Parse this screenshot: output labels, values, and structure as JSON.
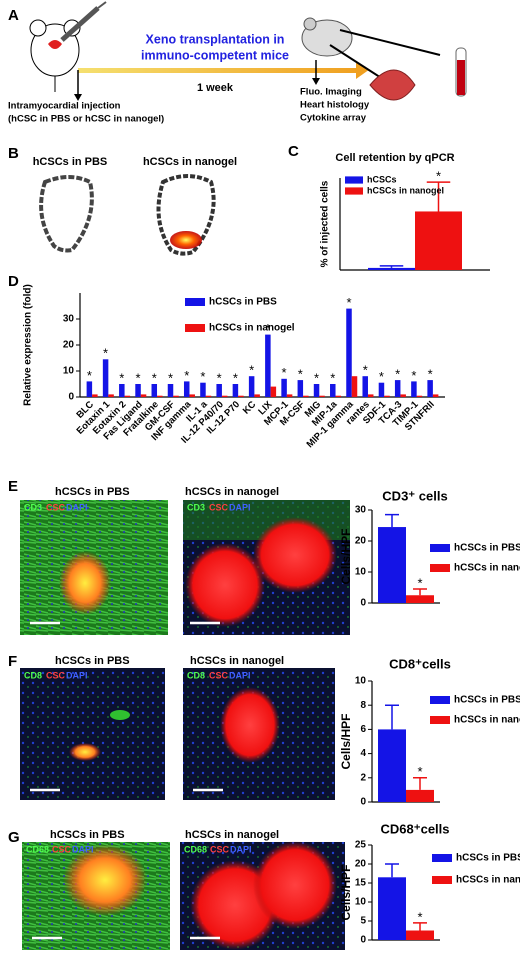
{
  "panel_labels": [
    "A",
    "B",
    "C",
    "D",
    "E",
    "F",
    "G"
  ],
  "panel_a": {
    "title_lines": [
      "Xeno transplantation in",
      "immuno-competent mice"
    ],
    "duration": "1 week",
    "injection": [
      "Intramyocardial injection",
      "(hCSC in PBS or hCSC in nanogel)"
    ],
    "readouts": [
      "Fluo. Imaging",
      "Heart histology",
      "Cytokine array"
    ]
  },
  "panel_b": {
    "labels": [
      "hCSCs in PBS",
      "hCSCs in nanogel"
    ]
  },
  "panel_e": {
    "labels": [
      "hCSCs in PBS",
      "hCSCs in nanogel"
    ],
    "stain": [
      "CD3",
      "CSC",
      "DAPI"
    ]
  },
  "panel_f": {
    "labels": [
      "hCSCs in PBS",
      "hCSCs in nanogel"
    ],
    "stain": [
      "CD8",
      "CSC",
      "DAPI"
    ]
  },
  "panel_g": {
    "labels": [
      "hCSCs in PBS",
      "hCSCs in nanogel"
    ],
    "stain": [
      "CD68",
      "CSC",
      "DAPI"
    ]
  },
  "chart_data": [
    {
      "type": "bar",
      "title": "Cell retention by qPCR",
      "ylabel": "% of injected cells",
      "categories": [
        null
      ],
      "series": [
        {
          "name": "hCSCs",
          "color": "#1414e6",
          "values": [
            0.5
          ],
          "errors": [
            0.5
          ]
        },
        {
          "name": "hCSCs in nanogel",
          "color": "#ee1111",
          "values": [
            14
          ],
          "errors": [
            7
          ]
        }
      ],
      "ylim": [
        0,
        22
      ],
      "significance": "*"
    },
    {
      "type": "bar",
      "ylabel": "Relative expression (fold)",
      "categories": [
        "BLC",
        "Eotaxin 1",
        "Eotaxin 2",
        "Fas Ligand",
        "Fratalkine",
        "GM-CSF",
        "INF gamma",
        "IL-1 a",
        "IL-12 P40/70",
        "IL-12 P70",
        "KC",
        "LIX",
        "MCP-1",
        "M-CSF",
        "MIG",
        "MIP-1a",
        "MIP-1 gamma",
        "rantes",
        "SDF-1",
        "TCA-3",
        "TIMP-1",
        "STNFRII"
      ],
      "series": [
        {
          "name": "hCSCs in PBS",
          "color": "#1414e6",
          "values": [
            6,
            14.5,
            5,
            5,
            5,
            5,
            6,
            5.5,
            5,
            5,
            8,
            24,
            7,
            6.5,
            5,
            5,
            34,
            8,
            5.5,
            6.5,
            6,
            6.5
          ]
        },
        {
          "name": "hCSCs in nanogel",
          "color": "#ee1111",
          "values": [
            1,
            1,
            0.5,
            1,
            0.5,
            0.5,
            1,
            0.5,
            0.5,
            0.5,
            1,
            4,
            1,
            0.5,
            0.5,
            0.5,
            8,
            1,
            0.5,
            1,
            0.5,
            1
          ]
        }
      ],
      "ylim": [
        0,
        40
      ],
      "yticks": [
        0,
        10,
        20,
        30
      ],
      "significance": "*"
    },
    {
      "type": "bar",
      "title": "CD3⁺ cells",
      "ylabel": "Cells/HPF",
      "categories": [
        null
      ],
      "series": [
        {
          "name": "hCSCs in PBS",
          "color": "#1414e6",
          "values": [
            24.5
          ],
          "errors": [
            4
          ]
        },
        {
          "name": "hCSCs in nanogel",
          "color": "#ee1111",
          "values": [
            2.5
          ],
          "errors": [
            2
          ]
        }
      ],
      "ylim": [
        0,
        30
      ],
      "yticks": [
        0,
        10,
        20,
        30
      ],
      "significance": "*"
    },
    {
      "type": "bar",
      "title": "CD8⁺cells",
      "ylabel": "Cells/HPF",
      "categories": [
        null
      ],
      "series": [
        {
          "name": "hCSCs in PBS",
          "color": "#1414e6",
          "values": [
            6
          ],
          "errors": [
            2
          ]
        },
        {
          "name": "hCSCs in nanogel",
          "color": "#ee1111",
          "values": [
            1
          ],
          "errors": [
            1
          ]
        }
      ],
      "ylim": [
        0,
        10
      ],
      "yticks": [
        0,
        2,
        4,
        6,
        8,
        10
      ],
      "significance": "*"
    },
    {
      "type": "bar",
      "title": "CD68⁺cells",
      "ylabel": "Cells/HPF",
      "categories": [
        null
      ],
      "series": [
        {
          "name": "hCSCs in PBS",
          "color": "#1414e6",
          "values": [
            16.5
          ],
          "errors": [
            3.5
          ]
        },
        {
          "name": "hCSCs in nanogel",
          "color": "#ee1111",
          "values": [
            2.5
          ],
          "errors": [
            2
          ]
        }
      ],
      "ylim": [
        0,
        25
      ],
      "yticks": [
        0,
        5,
        10,
        15,
        20,
        25
      ],
      "significance": "*"
    }
  ]
}
